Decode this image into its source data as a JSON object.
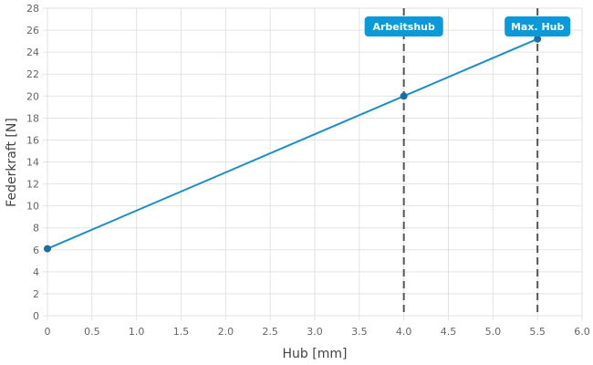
{
  "chart_data": {
    "type": "line",
    "xlabel": "Hub [mm]",
    "ylabel": "Federkraft [N]",
    "xlim": [
      0,
      6.0
    ],
    "ylim": [
      0,
      28
    ],
    "x_ticks": [
      "0",
      "0.5",
      "1.0",
      "1.5",
      "2.0",
      "2.5",
      "3.0",
      "3.5",
      "4.0",
      "4.5",
      "5.0",
      "5.5",
      "6.0"
    ],
    "y_ticks": [
      "0",
      "2",
      "4",
      "6",
      "8",
      "10",
      "12",
      "14",
      "16",
      "18",
      "20",
      "22",
      "24",
      "26",
      "28"
    ],
    "grid": true,
    "series": [
      {
        "color": "#1a8fc9",
        "points": [
          {
            "x": 0,
            "y": 6.1
          },
          {
            "x": 4.0,
            "y": 20.0
          },
          {
            "x": 5.5,
            "y": 25.2
          }
        ]
      }
    ],
    "markers": [
      {
        "x": 4.0,
        "label": "Arbeitshub"
      },
      {
        "x": 5.5,
        "label": "Max. Hub"
      }
    ],
    "colors": {
      "line": "#1a8fc9",
      "point": "#1a6fa0",
      "badge": "#0a9ad9",
      "marker_line": "#555555",
      "grid": "#e2e2e2"
    }
  }
}
